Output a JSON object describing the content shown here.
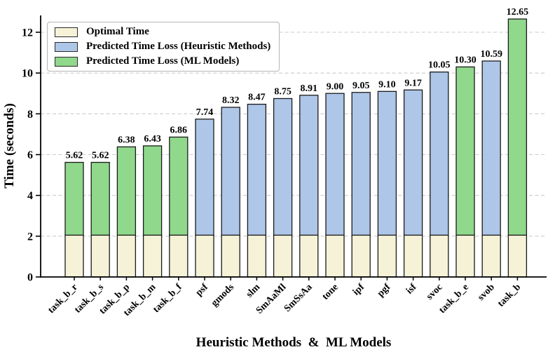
{
  "chart_data": {
    "type": "bar",
    "subtype": "stacked",
    "title": "",
    "xlabel": "Heuristic Methods  &  ML Models",
    "ylabel": "Time (seconds)",
    "ylim": [
      0,
      12.8
    ],
    "yticks": [
      0,
      2,
      4,
      6,
      8,
      10,
      12
    ],
    "grid": "horizontal-dashed",
    "grid_color": "#cbcbcb",
    "legend_position": "upper-left",
    "optimal_time_base": 2.05,
    "legend": [
      {
        "key": "optimal",
        "label": "Optimal Time",
        "color": "#f5f2d8"
      },
      {
        "key": "heuristic",
        "label": "Predicted Time Loss (Heuristic Methods)",
        "color": "#aec6e8"
      },
      {
        "key": "ml",
        "label": "Predicted Time Loss (ML Models)",
        "color": "#90d88c"
      }
    ],
    "bars": [
      {
        "category": "task_b_r",
        "total": 5.62,
        "loss_type": "ml"
      },
      {
        "category": "task_b_s",
        "total": 5.62,
        "loss_type": "ml"
      },
      {
        "category": "task_b_p",
        "total": 6.38,
        "loss_type": "ml"
      },
      {
        "category": "task_b_m",
        "total": 6.43,
        "loss_type": "ml"
      },
      {
        "category": "task_b_f",
        "total": 6.86,
        "loss_type": "ml"
      },
      {
        "category": "psf",
        "total": 7.74,
        "loss_type": "heuristic"
      },
      {
        "category": "gmods",
        "total": 8.32,
        "loss_type": "heuristic"
      },
      {
        "category": "slm",
        "total": 8.47,
        "loss_type": "heuristic"
      },
      {
        "category": "SmAaMl",
        "total": 8.75,
        "loss_type": "heuristic"
      },
      {
        "category": "SmSsAa",
        "total": 8.91,
        "loss_type": "heuristic"
      },
      {
        "category": "tone",
        "total": 9.0,
        "loss_type": "heuristic"
      },
      {
        "category": "ipf",
        "total": 9.05,
        "loss_type": "heuristic"
      },
      {
        "category": "pgf",
        "total": 9.1,
        "loss_type": "heuristic"
      },
      {
        "category": "isf",
        "total": 9.17,
        "loss_type": "heuristic"
      },
      {
        "category": "svoc",
        "total": 10.05,
        "loss_type": "heuristic"
      },
      {
        "category": "task_b_e",
        "total": 10.3,
        "loss_type": "ml"
      },
      {
        "category": "svob",
        "total": 10.59,
        "loss_type": "heuristic"
      },
      {
        "category": "task_b",
        "total": 12.65,
        "loss_type": "ml"
      }
    ],
    "bar_edge_color": "#1a1a1a",
    "value_label_decimals": 2
  }
}
